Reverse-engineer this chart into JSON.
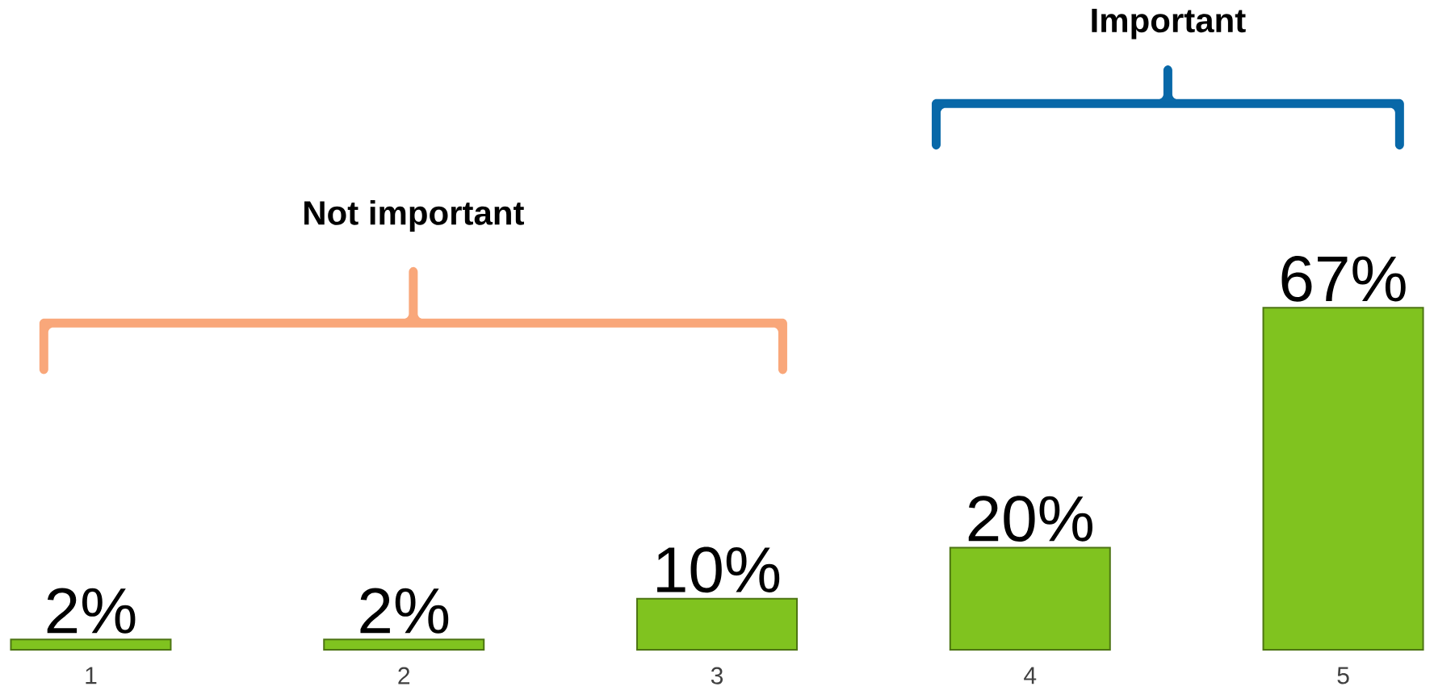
{
  "chart_data": {
    "type": "bar",
    "categories": [
      "1",
      "2",
      "3",
      "4",
      "5"
    ],
    "values": [
      2,
      2,
      10,
      20,
      67
    ],
    "value_labels": [
      "2%",
      "2%",
      "10%",
      "20%",
      "67%"
    ],
    "color": "#80c31f",
    "annotations": [
      "Not important",
      "Important"
    ]
  }
}
